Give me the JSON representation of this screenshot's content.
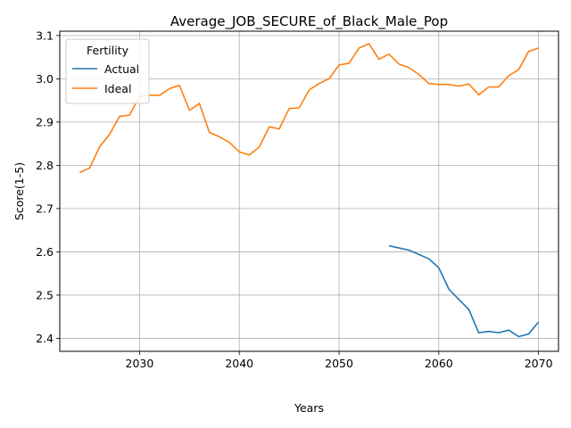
{
  "chart_data": {
    "type": "line",
    "title": "Average_JOB_SECURE_of_Black_Male_Pop",
    "xlabel": "Years",
    "ylabel": "Score(1-5)",
    "xlim": [
      2022,
      2072
    ],
    "ylim": [
      2.37,
      3.11
    ],
    "xticks": [
      2030,
      2040,
      2050,
      2060,
      2070
    ],
    "yticks": [
      2.4,
      2.5,
      2.6,
      2.7,
      2.8,
      2.9,
      3.0,
      3.1
    ],
    "ytick_labels": [
      "2.4",
      "2.5",
      "2.6",
      "2.7",
      "2.8",
      "2.9",
      "3.0",
      "3.1"
    ],
    "grid": true,
    "legend": {
      "title": "Fertility",
      "position": "top-left"
    },
    "series": [
      {
        "name": "Actual",
        "color": "#1f77b4",
        "points": [
          [
            2055,
            2.614
          ],
          [
            2056,
            2.609
          ],
          [
            2057,
            2.604
          ],
          [
            2058,
            2.594
          ],
          [
            2059,
            2.584
          ],
          [
            2060,
            2.563
          ],
          [
            2061,
            2.514
          ],
          [
            2062,
            2.49
          ],
          [
            2063,
            2.467
          ],
          [
            2064,
            2.413
          ],
          [
            2065,
            2.416
          ],
          [
            2066,
            2.413
          ],
          [
            2067,
            2.419
          ],
          [
            2068,
            2.404
          ],
          [
            2069,
            2.41
          ],
          [
            2070,
            2.438
          ]
        ]
      },
      {
        "name": "Ideal",
        "color": "#ff7f0e",
        "points": [
          [
            2024,
            2.783
          ],
          [
            2025,
            2.794
          ],
          [
            2026,
            2.843
          ],
          [
            2027,
            2.872
          ],
          [
            2028,
            2.913
          ],
          [
            2029,
            2.916
          ],
          [
            2030,
            2.96
          ],
          [
            2031,
            2.962
          ],
          [
            2032,
            2.962
          ],
          [
            2033,
            2.977
          ],
          [
            2034,
            2.985
          ],
          [
            2035,
            2.927
          ],
          [
            2036,
            2.943
          ],
          [
            2037,
            2.876
          ],
          [
            2038,
            2.866
          ],
          [
            2039,
            2.853
          ],
          [
            2040,
            2.831
          ],
          [
            2041,
            2.824
          ],
          [
            2042,
            2.842
          ],
          [
            2043,
            2.889
          ],
          [
            2044,
            2.884
          ],
          [
            2045,
            2.931
          ],
          [
            2046,
            2.933
          ],
          [
            2047,
            2.974
          ],
          [
            2048,
            2.989
          ],
          [
            2049,
            3.0
          ],
          [
            2050,
            3.032
          ],
          [
            2051,
            3.036
          ],
          [
            2052,
            3.071
          ],
          [
            2053,
            3.081
          ],
          [
            2054,
            3.045
          ],
          [
            2055,
            3.057
          ],
          [
            2056,
            3.034
          ],
          [
            2057,
            3.026
          ],
          [
            2058,
            3.01
          ],
          [
            2059,
            2.989
          ],
          [
            2060,
            2.987
          ],
          [
            2061,
            2.987
          ],
          [
            2062,
            2.983
          ],
          [
            2063,
            2.988
          ],
          [
            2064,
            2.963
          ],
          [
            2065,
            2.981
          ],
          [
            2066,
            2.981
          ],
          [
            2067,
            3.007
          ],
          [
            2068,
            3.021
          ],
          [
            2069,
            3.063
          ],
          [
            2070,
            3.071
          ]
        ]
      }
    ]
  }
}
